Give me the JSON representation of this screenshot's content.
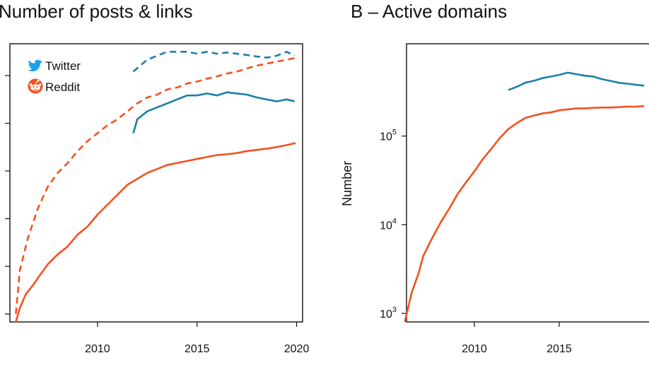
{
  "chart_data": [
    {
      "type": "line",
      "title": "Number of posts & links",
      "xlabel": "",
      "ylabel": "",
      "xlim": [
        2005.6,
        2020.3
      ],
      "ylim": [
        0.0,
        7.0
      ],
      "x_ticks": [
        "2010",
        "2015",
        "2020"
      ],
      "x_tick_values": [
        2010,
        2015,
        2020
      ],
      "legend": {
        "placement": "top-left",
        "entries": [
          {
            "label": "Twitter",
            "color": "#1a7fa8",
            "icon": "twitter-bird-icon"
          },
          {
            "label": "Reddit",
            "color": "#f4511e",
            "icon": "reddit-alien-icon"
          }
        ]
      },
      "series": [
        {
          "platform": "Twitter",
          "style": "dashed",
          "color": "#1a7fa8",
          "x": [
            2011.8,
            2012.5,
            2013.0,
            2013.5,
            2014.0,
            2014.5,
            2015.0,
            2015.5,
            2016.0,
            2016.5,
            2017.0,
            2017.5,
            2018.0,
            2018.5,
            2019.0,
            2019.5,
            2019.9
          ],
          "y": [
            6.3,
            6.6,
            6.7,
            6.8,
            6.8,
            6.8,
            6.75,
            6.8,
            6.75,
            6.78,
            6.75,
            6.72,
            6.68,
            6.65,
            6.7,
            6.8,
            6.7
          ]
        },
        {
          "platform": "Twitter",
          "style": "solid",
          "color": "#1a7fa8",
          "x": [
            2011.8,
            2012.0,
            2012.5,
            2013.0,
            2013.5,
            2014.0,
            2014.5,
            2015.0,
            2015.5,
            2016.0,
            2016.5,
            2017.0,
            2017.5,
            2018.0,
            2018.5,
            2019.0,
            2019.5,
            2019.9
          ],
          "y": [
            4.75,
            5.1,
            5.3,
            5.4,
            5.5,
            5.6,
            5.7,
            5.7,
            5.75,
            5.7,
            5.78,
            5.75,
            5.72,
            5.65,
            5.6,
            5.55,
            5.6,
            5.55
          ]
        },
        {
          "platform": "Reddit",
          "style": "dashed",
          "color": "#f4511e",
          "x": [
            2005.9,
            2006.1,
            2006.5,
            2007.0,
            2007.5,
            2008.0,
            2008.5,
            2009.0,
            2009.5,
            2010.0,
            2010.5,
            2011.0,
            2011.5,
            2012.0,
            2012.5,
            2013.0,
            2013.5,
            2014.0,
            2014.5,
            2015.0,
            2015.5,
            2016.0,
            2016.5,
            2017.0,
            2017.5,
            2018.0,
            2018.5,
            2019.0,
            2019.5,
            2020.0
          ],
          "y": [
            0.2,
            1.3,
            2.1,
            2.85,
            3.4,
            3.75,
            4.0,
            4.3,
            4.55,
            4.75,
            4.95,
            5.1,
            5.3,
            5.5,
            5.65,
            5.72,
            5.85,
            5.9,
            6.0,
            6.05,
            6.12,
            6.18,
            6.25,
            6.3,
            6.38,
            6.45,
            6.5,
            6.55,
            6.6,
            6.65
          ]
        },
        {
          "platform": "Reddit",
          "style": "solid",
          "color": "#f4511e",
          "x": [
            2005.9,
            2006.1,
            2006.4,
            2006.8,
            2007.0,
            2007.5,
            2008.0,
            2008.5,
            2009.0,
            2009.5,
            2010.0,
            2010.5,
            2011.0,
            2011.5,
            2012.0,
            2012.5,
            2013.0,
            2013.5,
            2014.0,
            2014.5,
            2015.0,
            2015.5,
            2016.0,
            2016.5,
            2017.0,
            2017.5,
            2018.0,
            2018.5,
            2019.0,
            2019.5,
            2019.95
          ],
          "y": [
            0.0,
            0.35,
            0.7,
            0.95,
            1.1,
            1.45,
            1.7,
            1.9,
            2.2,
            2.4,
            2.7,
            2.95,
            3.2,
            3.45,
            3.6,
            3.75,
            3.85,
            3.95,
            4.0,
            4.05,
            4.1,
            4.15,
            4.2,
            4.22,
            4.25,
            4.3,
            4.33,
            4.36,
            4.4,
            4.45,
            4.5
          ]
        }
      ]
    },
    {
      "type": "line",
      "title": "B – Active domains",
      "xlabel": "",
      "ylabel": "Number",
      "yscale": "log",
      "xlim": [
        2006.0,
        2021.0
      ],
      "ylim": [
        800,
        1100000
      ],
      "x_ticks": [
        "2010",
        "2015"
      ],
      "x_tick_values": [
        2010,
        2015
      ],
      "y_ticks": [
        {
          "base": "10",
          "exp": "3",
          "value": 1000
        },
        {
          "base": "10",
          "exp": "4",
          "value": 10000
        },
        {
          "base": "10",
          "exp": "5",
          "value": 100000
        }
      ],
      "series": [
        {
          "platform": "Twitter",
          "style": "solid",
          "color": "#1a7fa8",
          "x": [
            2012.0,
            2012.5,
            2013.0,
            2013.5,
            2014.0,
            2014.5,
            2015.0,
            2015.5,
            2016.0,
            2016.5,
            2017.0,
            2017.5,
            2018.0,
            2018.5,
            2019.0,
            2019.5,
            2020.0
          ],
          "y": [
            330000,
            360000,
            400000,
            420000,
            450000,
            470000,
            490000,
            520000,
            500000,
            480000,
            470000,
            440000,
            420000,
            400000,
            390000,
            380000,
            370000
          ]
        },
        {
          "platform": "Reddit",
          "style": "solid",
          "color": "#f4511e",
          "x": [
            2005.9,
            2006.3,
            2006.7,
            2007.0,
            2007.5,
            2008.0,
            2008.5,
            2009.0,
            2009.5,
            2010.0,
            2010.5,
            2011.0,
            2011.5,
            2012.0,
            2012.5,
            2013.0,
            2013.5,
            2014.0,
            2014.5,
            2015.0,
            2015.5,
            2016.0,
            2016.5,
            2017.0,
            2017.5,
            2018.0,
            2018.5,
            2019.0,
            2019.5,
            2020.0
          ],
          "y": [
            800,
            1700,
            2800,
            4500,
            7000,
            10500,
            15000,
            22000,
            30000,
            40000,
            55000,
            72000,
            95000,
            120000,
            140000,
            160000,
            170000,
            180000,
            185000,
            195000,
            200000,
            205000,
            205000,
            208000,
            210000,
            210000,
            212000,
            215000,
            215000,
            218000
          ]
        }
      ]
    }
  ]
}
